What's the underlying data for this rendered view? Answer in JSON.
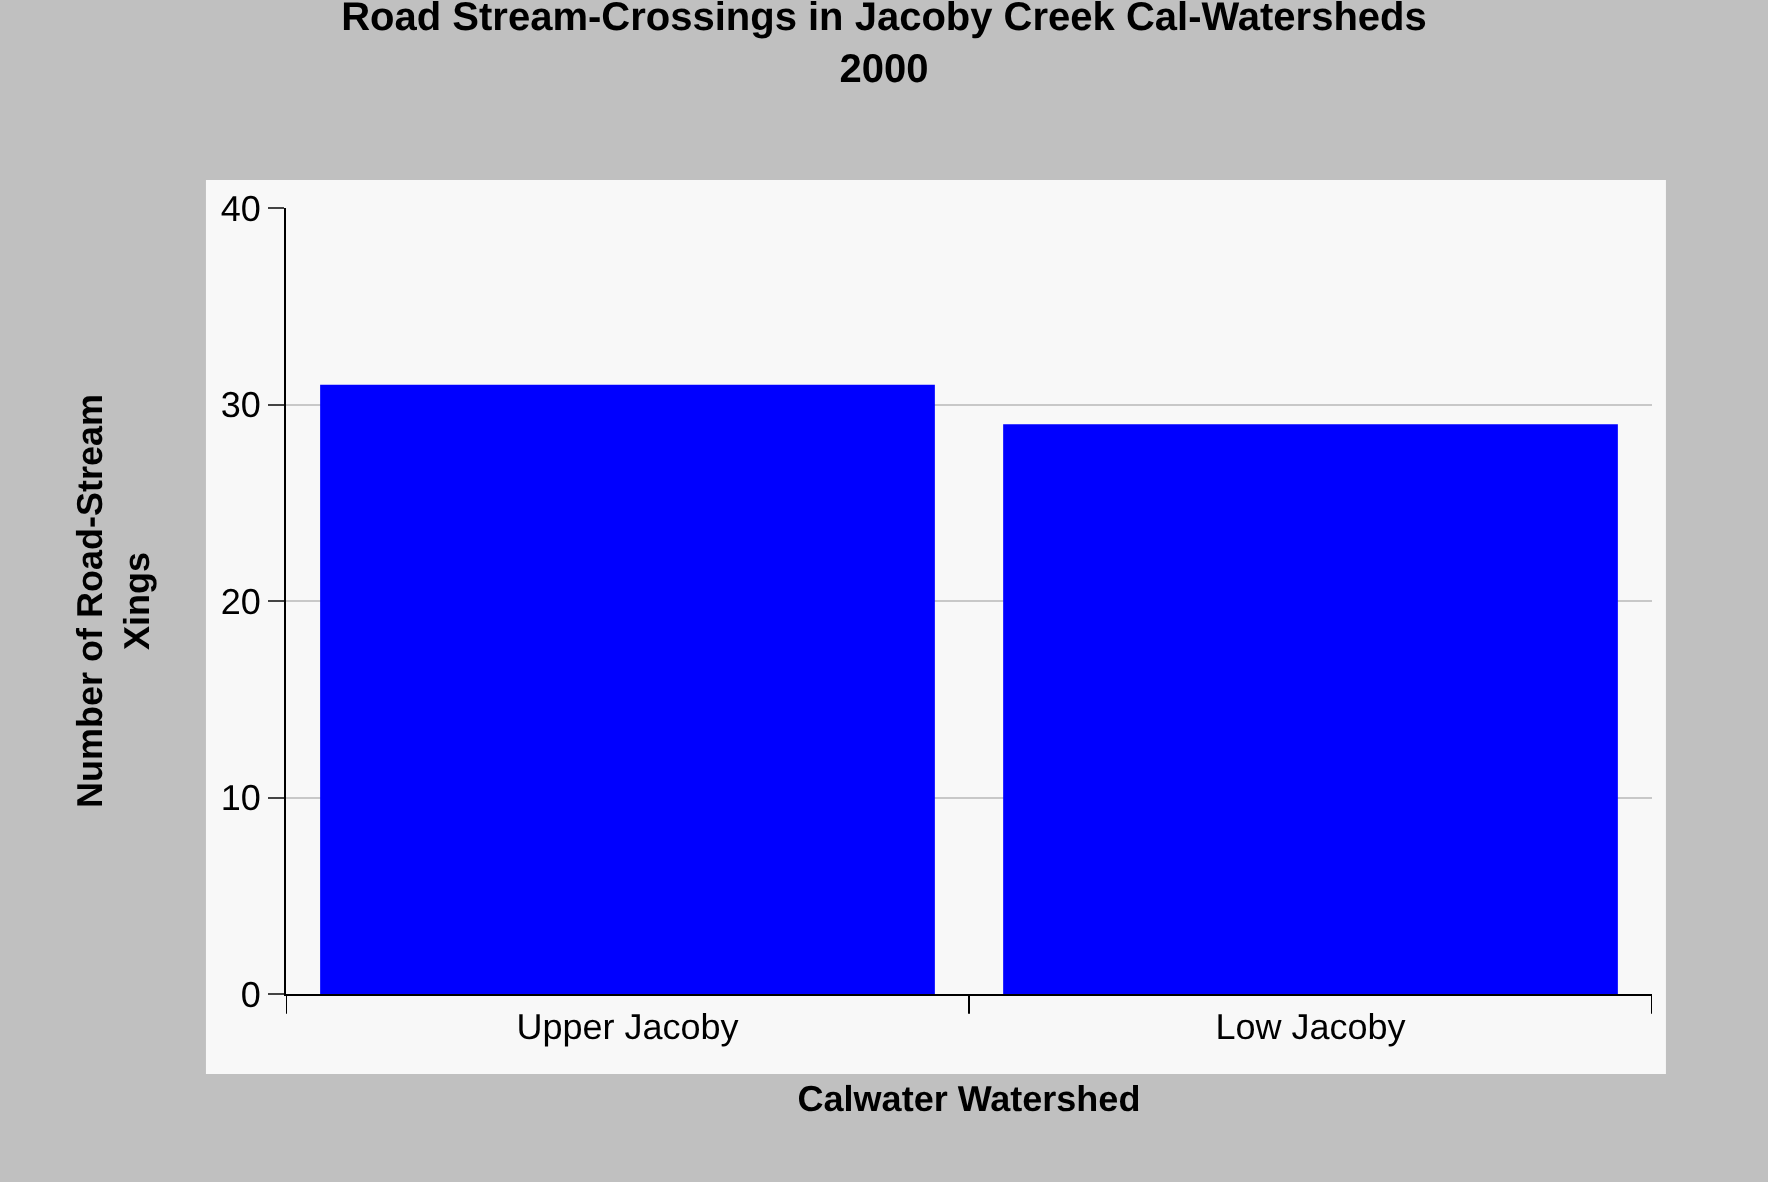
{
  "chart_data": {
    "type": "bar",
    "title": "Road Stream-Crossings in Jacoby Creek Cal-Watersheds\n2000",
    "xlabel": "Calwater Watershed",
    "ylabel": "Number of Road-Stream\nXings",
    "categories": [
      "Upper Jacoby",
      "Low Jacoby"
    ],
    "values": [
      31,
      29
    ],
    "color": "#0000ff",
    "ylim": [
      0,
      40
    ],
    "yticks": [
      0,
      10,
      20,
      30,
      40
    ],
    "grid": "y"
  }
}
